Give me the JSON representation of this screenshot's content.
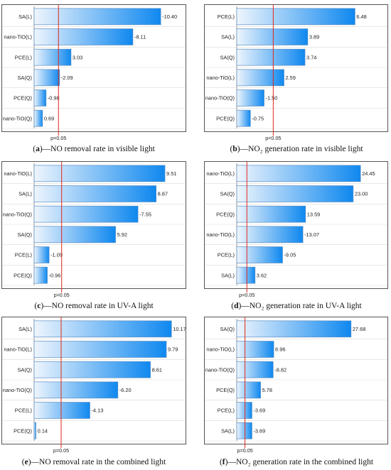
{
  "chart_data": [
    {
      "type": "bar",
      "orientation": "horizontal",
      "caption_letter": "a",
      "caption_text": "—NO removal rate in visible light",
      "categories": [
        "SA(L)",
        "nano-TiO(L)",
        "PCE(L)",
        "SA(Q)",
        "PCE(Q)",
        "nano-TiO(Q)"
      ],
      "values": [
        -10.4,
        -8.11,
        3.03,
        -2.09,
        -0.98,
        0.69
      ],
      "value_labels": [
        "-10.40",
        "-8.11",
        "3.03",
        "-2.09",
        "-0.98",
        "0.69"
      ],
      "xlim": [
        0,
        12.2
      ],
      "threshold": 2.0,
      "threshold_label": "p=0.05"
    },
    {
      "type": "bar",
      "orientation": "horizontal",
      "caption_letter": "b",
      "caption_text": "—NO₂ generation rate in visible light",
      "categories": [
        "PCE(L)",
        "SA(L)",
        "SA(Q)",
        "nano-TiO(L)",
        "nano-TiO(Q)",
        "PCE(Q)"
      ],
      "values": [
        6.48,
        3.89,
        3.74,
        2.59,
        -1.5,
        -0.75
      ],
      "value_labels": [
        "6.48",
        "3.89",
        "3.74",
        "2.59",
        "-1.50",
        "-0.75"
      ],
      "xlim": [
        0,
        8.1
      ],
      "threshold": 2.0,
      "threshold_label": "p=0.05"
    },
    {
      "type": "bar",
      "orientation": "horizontal",
      "caption_letter": "c",
      "caption_text": "—NO removal rate in UV-A light",
      "categories": [
        "nano-TiO(L)",
        "SA(L)",
        "nano-TiO(Q)",
        "SA(Q)",
        "PCE(L)",
        "PCE(Q)"
      ],
      "values": [
        9.51,
        8.87,
        -7.55,
        5.92,
        -1.09,
        -0.96
      ],
      "value_labels": [
        "9.51",
        "8.87",
        "-7.55",
        "5.92",
        "-1.09",
        "-0.96"
      ],
      "xlim": [
        0,
        10.8
      ],
      "threshold": 2.0,
      "threshold_label": "p=0.05"
    },
    {
      "type": "bar",
      "orientation": "horizontal",
      "caption_letter": "d",
      "caption_text": "—NO₂ generation rate in UV-A light",
      "categories": [
        "nano-TiO(L)",
        "SA(Q)",
        "PCE(Q)",
        "nano-TiO(L)",
        "PCE(L)",
        "SA(L)"
      ],
      "values": [
        24.45,
        23.0,
        13.59,
        -13.07,
        -9.05,
        3.62
      ],
      "value_labels": [
        "24.45",
        "23.00",
        "13.59",
        "-13.07",
        "-9.05",
        "3.62"
      ],
      "xlim": [
        0,
        29.2
      ],
      "threshold": 2.0,
      "threshold_label": "p=0.05"
    },
    {
      "type": "bar",
      "orientation": "horizontal",
      "caption_letter": "e",
      "caption_text": "—NO removal rate in the combined light",
      "categories": [
        "SA(L)",
        "nano-TiO(L)",
        "SA(Q)",
        "nano-TiO(Q)",
        "PCE(L)",
        "PCE(Q)"
      ],
      "values": [
        10.17,
        9.79,
        8.61,
        -6.2,
        -4.13,
        0.14
      ],
      "value_labels": [
        "10.17",
        "9.79",
        "8.61",
        "-6.20",
        "-4.13",
        "0.14"
      ],
      "xlim": [
        0,
        11.0
      ],
      "threshold": 2.0,
      "threshold_label": "p=0.05"
    },
    {
      "type": "bar",
      "orientation": "horizontal",
      "caption_letter": "f",
      "caption_text": "—NO₂ generation rate in the combined light",
      "categories": [
        "SA(Q)",
        "nano-TiO(L)",
        "nano-TiO(Q)",
        "PCE(Q)",
        "PCE(L)",
        "SA(L)"
      ],
      "values": [
        27.68,
        8.96,
        -8.82,
        5.78,
        -3.69,
        -3.69
      ],
      "value_labels": [
        "27.68",
        "8.96",
        "-8.82",
        "5.78",
        "-3.69",
        "-3.69"
      ],
      "xlim": [
        0,
        35.8
      ],
      "threshold": 2.0,
      "threshold_label": "p=0.05"
    }
  ],
  "colors": {
    "bar_light": "#eef5fd",
    "bar_dark": "#0f88ef",
    "bar_stroke": "#5b8ec4",
    "threshold_line": "#e0261b",
    "grid": "#d9d9d9"
  }
}
